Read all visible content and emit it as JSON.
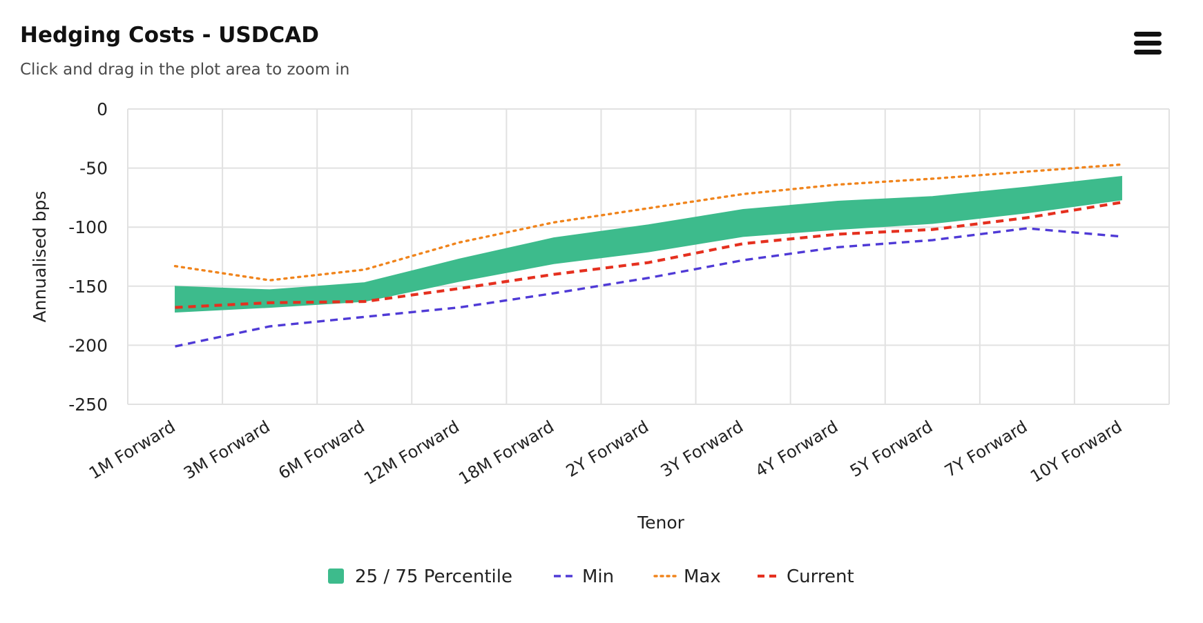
{
  "header": {
    "title": "Hedging Costs - USDCAD",
    "subtitle": "Click and drag in the plot area to zoom in",
    "menu_icon": "hamburger-menu-icon"
  },
  "chart_data": {
    "type": "line",
    "title": "Hedging Costs - USDCAD",
    "subtitle": "Click and drag in the plot area to zoom in",
    "xlabel": "Tenor",
    "ylabel": "Annualised bps",
    "ylim": [
      -250,
      0
    ],
    "yticks": [
      0,
      -50,
      -100,
      -150,
      -200,
      -250
    ],
    "grid": true,
    "legend_position": "bottom-center",
    "categories": [
      "1M Forward",
      "3M Forward",
      "6M Forward",
      "12M Forward",
      "18M Forward",
      "2Y Forward",
      "3Y Forward",
      "4Y Forward",
      "5Y Forward",
      "7Y Forward",
      "10Y Forward"
    ],
    "band": {
      "name": "25 / 75 Percentile",
      "color": "#3dbb8c",
      "low": [
        -172,
        -168,
        -163,
        -146,
        -131,
        -121,
        -108,
        -102,
        -97,
        -88,
        -77
      ],
      "high": [
        -150,
        -153,
        -147,
        -127,
        -109,
        -98,
        -85,
        -78,
        -74,
        -66,
        -57
      ]
    },
    "series": [
      {
        "name": "Min",
        "color": "#4f3ad6",
        "style": "dashed",
        "values": [
          -201,
          -184,
          -176,
          -168,
          -156,
          -143,
          -128,
          -117,
          -111,
          -101,
          -108
        ]
      },
      {
        "name": "Max",
        "color": "#f0841c",
        "style": "dotted",
        "values": [
          -133,
          -145,
          -136,
          -113,
          -96,
          -84,
          -72,
          -64,
          -59,
          -53,
          -47
        ]
      },
      {
        "name": "Current",
        "color": "#e5301f",
        "style": "dashed",
        "values": [
          -168,
          -164,
          -163,
          -152,
          -140,
          -130,
          -114,
          -106,
          -102,
          -92,
          -79
        ]
      }
    ]
  }
}
